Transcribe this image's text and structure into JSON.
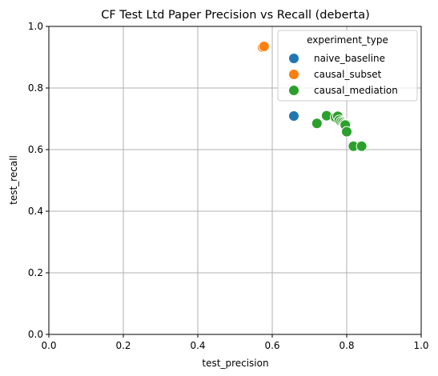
{
  "chart_data": {
    "type": "scatter",
    "title": "CF Test Ltd Paper Precision vs Recall (deberta)",
    "xlabel": "test_precision",
    "ylabel": "test_recall",
    "xlim": [
      0,
      1
    ],
    "ylim": [
      0,
      1
    ],
    "xticks": [
      "0.0",
      "0.2",
      "0.4",
      "0.6",
      "0.8",
      "1.0"
    ],
    "yticks": [
      "0.0",
      "0.2",
      "0.4",
      "0.6",
      "0.8",
      "1.0"
    ],
    "grid": true,
    "legend": {
      "title": "experiment_type",
      "placement": "top-right"
    },
    "series": [
      {
        "name": "naive_baseline",
        "color": "#1f77b4",
        "points": [
          [
            0.658,
            0.709
          ]
        ]
      },
      {
        "name": "causal_subset",
        "color": "#ff7f0e",
        "points": [
          [
            0.574,
            0.932
          ],
          [
            0.578,
            0.935
          ]
        ]
      },
      {
        "name": "causal_mediation",
        "color": "#2ca02c",
        "points": [
          [
            0.72,
            0.685
          ],
          [
            0.746,
            0.71
          ],
          [
            0.77,
            0.705
          ],
          [
            0.776,
            0.708
          ],
          [
            0.78,
            0.695
          ],
          [
            0.785,
            0.69
          ],
          [
            0.79,
            0.688
          ],
          [
            0.794,
            0.684
          ],
          [
            0.798,
            0.682
          ],
          [
            0.796,
            0.68
          ],
          [
            0.8,
            0.658
          ],
          [
            0.818,
            0.611
          ],
          [
            0.84,
            0.611
          ]
        ]
      }
    ]
  }
}
